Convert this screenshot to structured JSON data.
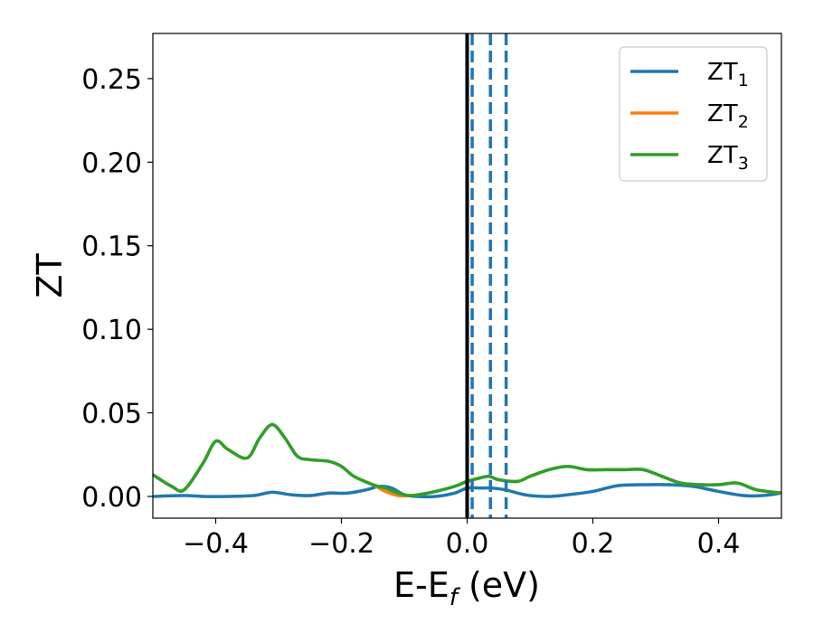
{
  "chart_data": {
    "type": "line",
    "title": "",
    "xlabel": "E-E",
    "xlabel_sub": "f",
    "xlabel_unit": " (eV)",
    "ylabel": "ZT",
    "xlim": [
      -0.5,
      0.5
    ],
    "ylim": [
      -0.013,
      0.277
    ],
    "xticks": [
      -0.4,
      -0.2,
      0.0,
      0.2,
      0.4
    ],
    "xtick_labels": [
      "−0.4",
      "−0.2",
      "0.0",
      "0.2",
      "0.4"
    ],
    "yticks": [
      0.0,
      0.05,
      0.1,
      0.15,
      0.2,
      0.25
    ],
    "ytick_labels": [
      "0.00",
      "0.05",
      "0.10",
      "0.15",
      "0.20",
      "0.25"
    ],
    "grid": false,
    "legend_position": "top-right",
    "vertical_lines": [
      {
        "x": 0.0,
        "style": "solid",
        "color": "#000000"
      },
      {
        "x": 0.008,
        "style": "dashed",
        "color": "#1f77b4"
      },
      {
        "x": 0.037,
        "style": "dashed",
        "color": "#1f77b4"
      },
      {
        "x": 0.062,
        "style": "dashed",
        "color": "#1f77b4"
      }
    ],
    "series": [
      {
        "name": "ZT",
        "sub": "1",
        "color": "#1f77b4",
        "x": [
          -0.5,
          -0.45,
          -0.42,
          -0.38,
          -0.34,
          -0.31,
          -0.28,
          -0.25,
          -0.22,
          -0.19,
          -0.16,
          -0.14,
          -0.12,
          -0.1,
          -0.08,
          -0.05,
          -0.02,
          0.0,
          0.02,
          0.04,
          0.06,
          0.08,
          0.1,
          0.13,
          0.16,
          0.2,
          0.24,
          0.28,
          0.32,
          0.36,
          0.4,
          0.44,
          0.47,
          0.5
        ],
        "y": [
          0.0,
          0.0005,
          0.0,
          0.0,
          0.0005,
          0.0025,
          0.001,
          0.0005,
          0.002,
          0.002,
          0.004,
          0.006,
          0.005,
          0.001,
          0.0,
          0.0,
          0.002,
          0.005,
          0.005,
          0.005,
          0.004,
          0.002,
          0.0005,
          0.0,
          0.001,
          0.003,
          0.0065,
          0.007,
          0.007,
          0.006,
          0.003,
          0.0005,
          0.0005,
          0.002
        ]
      },
      {
        "name": "ZT",
        "sub": "2",
        "color": "#ff7f0e",
        "x": [
          -0.5,
          -0.47,
          -0.45,
          -0.42,
          -0.4,
          -0.38,
          -0.35,
          -0.33,
          -0.31,
          -0.29,
          -0.27,
          -0.25,
          -0.22,
          -0.2,
          -0.18,
          -0.15,
          -0.13,
          -0.11,
          -0.09,
          -0.07,
          -0.05,
          -0.02,
          0.0,
          0.02,
          0.035,
          0.05,
          0.08,
          0.1,
          0.13,
          0.16,
          0.19,
          0.22,
          0.25,
          0.28,
          0.31,
          0.34,
          0.37,
          0.4,
          0.43,
          0.46,
          0.5
        ],
        "y": [
          0.013,
          0.006,
          0.004,
          0.02,
          0.033,
          0.028,
          0.023,
          0.035,
          0.043,
          0.035,
          0.024,
          0.022,
          0.021,
          0.018,
          0.012,
          0.007,
          0.003,
          0.0005,
          0.0005,
          0.0015,
          0.003,
          0.006,
          0.009,
          0.011,
          0.012,
          0.01,
          0.009,
          0.012,
          0.016,
          0.018,
          0.016,
          0.016,
          0.016,
          0.016,
          0.012,
          0.008,
          0.007,
          0.007,
          0.008,
          0.004,
          0.002
        ]
      },
      {
        "name": "ZT",
        "sub": "3",
        "color": "#2ca02c",
        "x": [
          -0.5,
          -0.47,
          -0.45,
          -0.42,
          -0.4,
          -0.38,
          -0.35,
          -0.33,
          -0.31,
          -0.29,
          -0.27,
          -0.25,
          -0.22,
          -0.2,
          -0.18,
          -0.15,
          -0.13,
          -0.11,
          -0.09,
          -0.07,
          -0.05,
          -0.02,
          0.0,
          0.02,
          0.035,
          0.05,
          0.08,
          0.1,
          0.13,
          0.16,
          0.19,
          0.22,
          0.25,
          0.28,
          0.31,
          0.34,
          0.37,
          0.4,
          0.43,
          0.46,
          0.5
        ],
        "y": [
          0.013,
          0.006,
          0.004,
          0.02,
          0.033,
          0.028,
          0.023,
          0.035,
          0.043,
          0.035,
          0.024,
          0.022,
          0.021,
          0.018,
          0.012,
          0.007,
          0.005,
          0.002,
          0.0005,
          0.0015,
          0.003,
          0.006,
          0.009,
          0.011,
          0.012,
          0.01,
          0.009,
          0.012,
          0.016,
          0.018,
          0.016,
          0.016,
          0.016,
          0.016,
          0.012,
          0.008,
          0.007,
          0.007,
          0.008,
          0.004,
          0.002
        ]
      }
    ]
  }
}
